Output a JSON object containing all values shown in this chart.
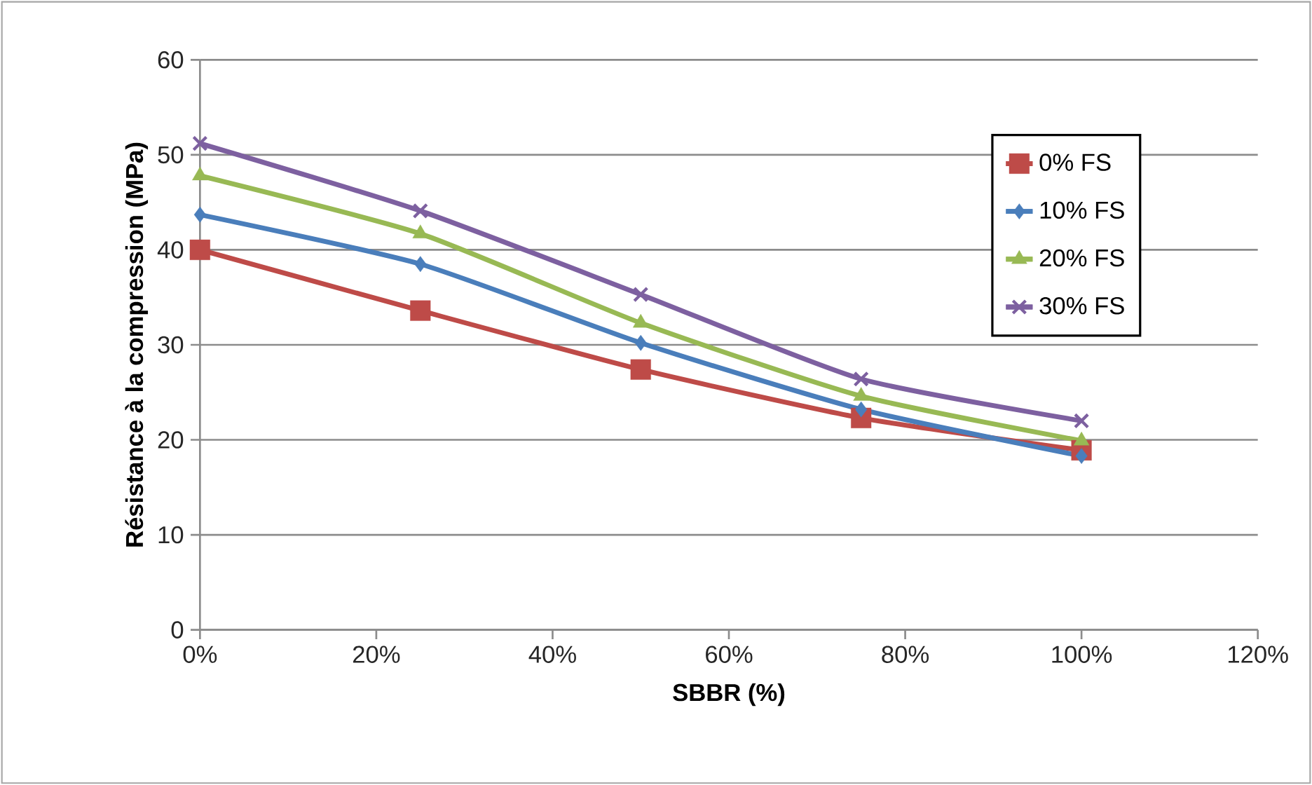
{
  "chart_data": {
    "type": "line",
    "xlabel": "SBBR (%)",
    "ylabel": "Résistance à la compression (MPa)",
    "x": [
      0,
      25,
      50,
      75,
      100
    ],
    "series": [
      {
        "name": "0% FS",
        "color": "#be4b48",
        "marker": "square",
        "values": [
          40.0,
          33.6,
          27.4,
          22.3,
          18.9
        ]
      },
      {
        "name": "10% FS",
        "color": "#4a7ebb",
        "marker": "diamond",
        "values": [
          43.7,
          38.5,
          30.2,
          23.2,
          18.3
        ]
      },
      {
        "name": "20% FS",
        "color": "#98b954",
        "marker": "triangle",
        "values": [
          47.8,
          41.7,
          32.3,
          24.6,
          19.9
        ]
      },
      {
        "name": "30% FS",
        "color": "#7d60a0",
        "marker": "cross",
        "values": [
          51.2,
          44.1,
          35.3,
          26.4,
          22.0
        ]
      }
    ],
    "xlim": [
      0,
      120
    ],
    "xticks": [
      {
        "value": 0,
        "label": "0%"
      },
      {
        "value": 20,
        "label": "20%"
      },
      {
        "value": 40,
        "label": "40%"
      },
      {
        "value": 60,
        "label": "60%"
      },
      {
        "value": 80,
        "label": "80%"
      },
      {
        "value": 100,
        "label": "100%"
      },
      {
        "value": 120,
        "label": "120%"
      }
    ],
    "ylim": [
      0,
      60
    ],
    "yticks": [
      0,
      10,
      20,
      30,
      40,
      50,
      60
    ],
    "grid": "y",
    "legend": "top right",
    "line_style": "solid"
  }
}
